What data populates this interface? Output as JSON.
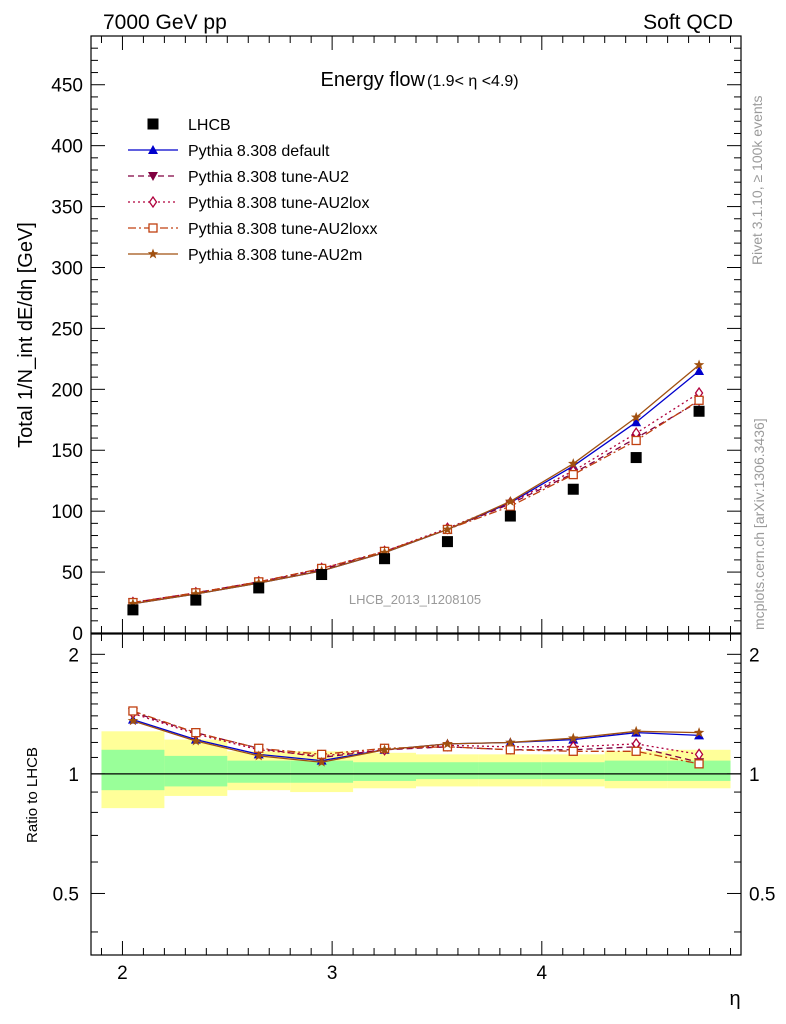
{
  "header": {
    "left": "7000 GeV pp",
    "right": "Soft QCD"
  },
  "side_labels": {
    "rivet": "Rivet 3.1.10, ≥ 100k events",
    "mcplots": "mcplots.cern.ch [arXiv:1306.3436]"
  },
  "colors": {
    "lhcb": "#000000",
    "default": "#0000cc",
    "au2": "#800040",
    "au2lox": "#b0003c",
    "au2loxx": "#c04010",
    "au2m": "#a05010",
    "band_yellow": "#ffff99",
    "band_green": "#99ff99"
  },
  "chart_data": [
    {
      "type": "scatter",
      "panel": "main",
      "title": "Energy flow",
      "title_suffix": "(1.9< η <4.9)",
      "ylabel": "Total 1/N_int dE/dη [GeV]",
      "watermark": "LHCB_2013_I1208105",
      "xlim": [
        1.85,
        4.95
      ],
      "ylim": [
        0,
        490
      ],
      "yticks": [
        0,
        50,
        100,
        150,
        200,
        250,
        300,
        350,
        400,
        450
      ],
      "x": [
        2.05,
        2.35,
        2.65,
        2.95,
        3.25,
        3.55,
        3.85,
        4.15,
        4.45,
        4.75
      ],
      "series": [
        {
          "name": "LHCB",
          "key": "lhcb",
          "marker": "square",
          "line": "none",
          "values": [
            19,
            27,
            37,
            48,
            61,
            75,
            96,
            118,
            144,
            182
          ]
        },
        {
          "name": "Pythia 8.308 default",
          "key": "default",
          "marker": "triangle",
          "line": "solid",
          "values": [
            24,
            32,
            41,
            51,
            66,
            85,
            107,
            137,
            173,
            215
          ]
        },
        {
          "name": "Pythia 8.308 tune-AU2",
          "key": "au2",
          "marker": "triangle-down",
          "line": "dashed",
          "values": [
            25,
            33,
            42,
            52,
            67,
            85,
            106,
            131,
            160,
            190
          ]
        },
        {
          "name": "Pythia 8.308 tune-AU2lox",
          "key": "au2lox",
          "marker": "diamond",
          "line": "dotted",
          "values": [
            25,
            33,
            42,
            53,
            67,
            86,
            107,
            133,
            164,
            197
          ]
        },
        {
          "name": "Pythia 8.308 tune-AU2loxx",
          "key": "au2loxx",
          "marker": "open-square",
          "line": "dashdot",
          "values": [
            25,
            33,
            42,
            53,
            67,
            85,
            104,
            130,
            158,
            191
          ]
        },
        {
          "name": "Pythia 8.308 tune-AU2m",
          "key": "au2m",
          "marker": "star",
          "line": "solid",
          "values": [
            24,
            32,
            41,
            51,
            66,
            85,
            108,
            139,
            177,
            220
          ]
        }
      ]
    },
    {
      "type": "line",
      "panel": "ratio",
      "ylabel": "Ratio to LHCB",
      "xlabel": "η",
      "xlim": [
        1.85,
        4.95
      ],
      "ylim": [
        0.35,
        2.25
      ],
      "yticks": [
        0.5,
        1,
        2
      ],
      "xticks": [
        2,
        3,
        4
      ],
      "bands": {
        "edges": [
          1.9,
          2.2,
          2.5,
          2.8,
          3.1,
          3.4,
          3.7,
          4.0,
          4.3,
          4.6,
          4.9
        ],
        "yellow": [
          [
            0.82,
            1.28
          ],
          [
            0.88,
            1.22
          ],
          [
            0.91,
            1.14
          ],
          [
            0.9,
            1.14
          ],
          [
            0.92,
            1.13
          ],
          [
            0.93,
            1.12
          ],
          [
            0.93,
            1.12
          ],
          [
            0.93,
            1.12
          ],
          [
            0.92,
            1.14
          ],
          [
            0.92,
            1.15
          ]
        ],
        "green": [
          [
            0.91,
            1.15
          ],
          [
            0.93,
            1.11
          ],
          [
            0.95,
            1.08
          ],
          [
            0.95,
            1.08
          ],
          [
            0.96,
            1.07
          ],
          [
            0.97,
            1.07
          ],
          [
            0.97,
            1.07
          ],
          [
            0.97,
            1.07
          ],
          [
            0.96,
            1.08
          ],
          [
            0.96,
            1.08
          ]
        ]
      },
      "x": [
        2.05,
        2.35,
        2.65,
        2.95,
        3.25,
        3.55,
        3.85,
        4.15,
        4.45,
        4.75
      ],
      "series": [
        {
          "name": "Pythia 8.308 default",
          "key": "default",
          "marker": "triangle",
          "line": "solid",
          "values": [
            1.37,
            1.22,
            1.12,
            1.08,
            1.15,
            1.19,
            1.2,
            1.22,
            1.27,
            1.25
          ]
        },
        {
          "name": "Pythia 8.308 tune-AU2",
          "key": "au2",
          "marker": "triangle-down",
          "line": "dashed",
          "values": [
            1.43,
            1.27,
            1.16,
            1.1,
            1.15,
            1.17,
            1.15,
            1.15,
            1.17,
            1.07
          ]
        },
        {
          "name": "Pythia 8.308 tune-AU2lox",
          "key": "au2lox",
          "marker": "diamond",
          "line": "dotted",
          "values": [
            1.42,
            1.26,
            1.15,
            1.11,
            1.15,
            1.18,
            1.17,
            1.17,
            1.19,
            1.12
          ]
        },
        {
          "name": "Pythia 8.308 tune-AU2loxx",
          "key": "au2loxx",
          "marker": "open-square",
          "line": "dashdot",
          "values": [
            1.44,
            1.27,
            1.16,
            1.12,
            1.16,
            1.17,
            1.15,
            1.14,
            1.14,
            1.06
          ]
        },
        {
          "name": "Pythia 8.308 tune-AU2m",
          "key": "au2m",
          "marker": "star",
          "line": "solid",
          "values": [
            1.36,
            1.21,
            1.11,
            1.07,
            1.15,
            1.19,
            1.2,
            1.23,
            1.28,
            1.27
          ]
        }
      ]
    }
  ]
}
